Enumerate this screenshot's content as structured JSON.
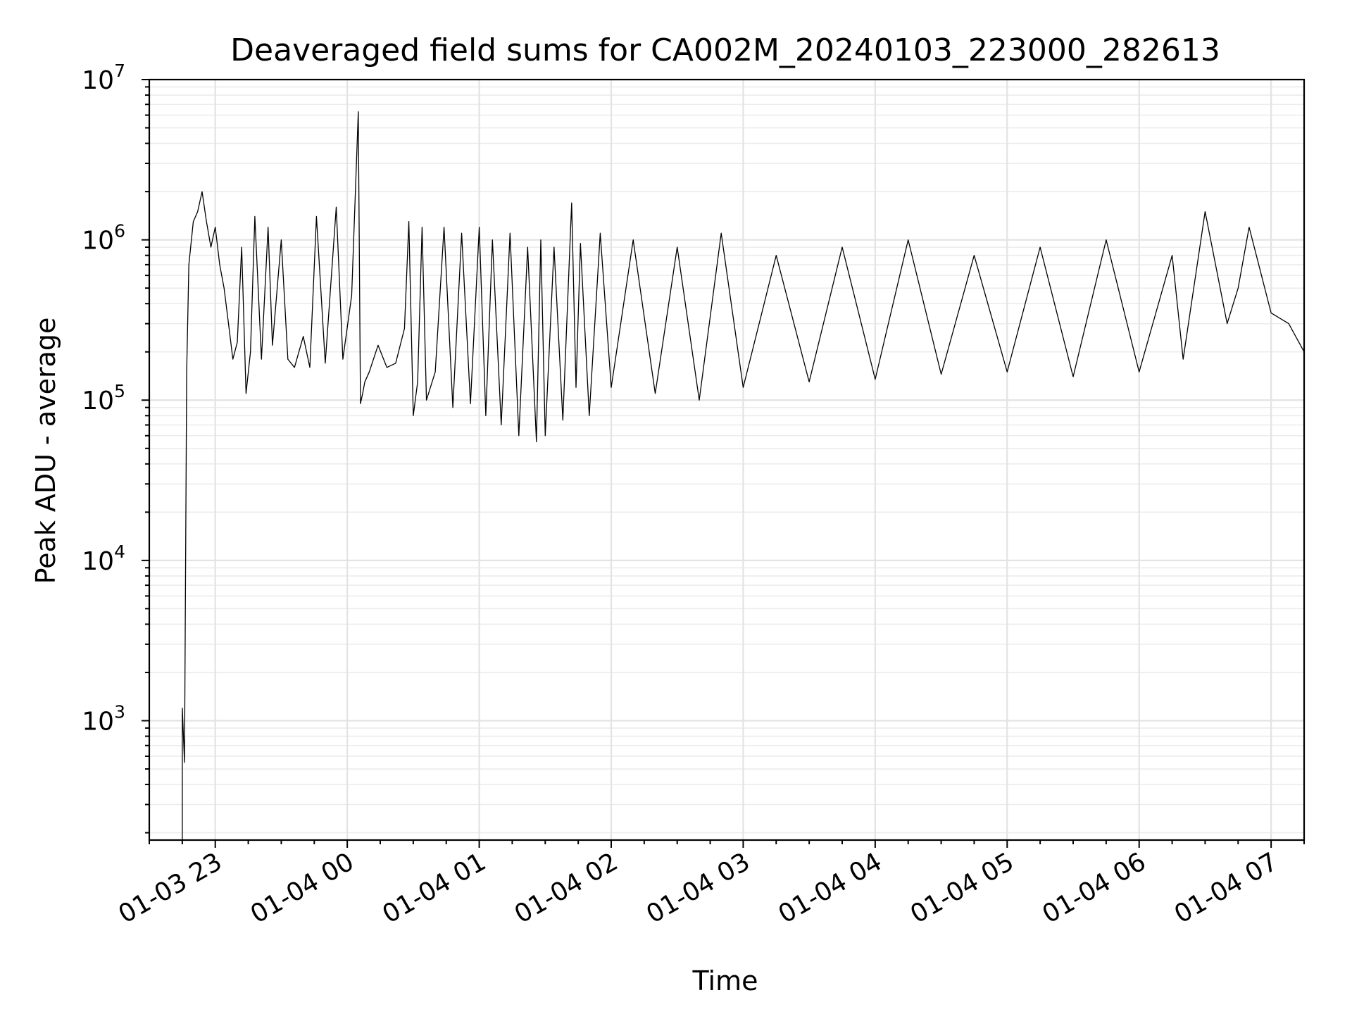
{
  "chart_data": {
    "type": "line",
    "title": "Deaveraged field sums for CA002M_20240103_223000_282613",
    "xlabel": "Time",
    "ylabel": "Peak ADU - average",
    "yscale": "log",
    "ylim": [
      180,
      10000000
    ],
    "xlim": [
      "2024-01-03 22:30",
      "2024-01-04 07:15"
    ],
    "grid": true,
    "grid_minor": true,
    "line_color": "#000000",
    "x_ticks": [
      "2024-01-03 23:00",
      "2024-01-04 00:00",
      "2024-01-04 01:00",
      "2024-01-04 02:00",
      "2024-01-04 03:00",
      "2024-01-04 04:00",
      "2024-01-04 05:00",
      "2024-01-04 06:00",
      "2024-01-04 07:00"
    ],
    "x_tick_labels": [
      "01-03 23",
      "01-04 00",
      "01-04 01",
      "01-04 02",
      "01-04 03",
      "01-04 04",
      "01-04 05",
      "01-04 06",
      "01-04 07"
    ],
    "y_ticks": [
      1000,
      10000,
      100000,
      1000000,
      10000000
    ],
    "y_tick_labels": [
      {
        "base": "10",
        "exp": "3"
      },
      {
        "base": "10",
        "exp": "4"
      },
      {
        "base": "10",
        "exp": "5"
      },
      {
        "base": "10",
        "exp": "6"
      },
      {
        "base": "10",
        "exp": "7"
      }
    ],
    "series": [
      {
        "x": [
          "2024-01-03 22:45",
          "2024-01-03 22:45",
          "2024-01-03 22:46",
          "2024-01-03 22:47",
          "2024-01-03 22:48",
          "2024-01-03 22:50",
          "2024-01-03 22:52",
          "2024-01-03 22:54",
          "2024-01-03 22:56",
          "2024-01-03 22:58",
          "2024-01-03 23:00",
          "2024-01-03 23:02",
          "2024-01-03 23:04",
          "2024-01-03 23:06",
          "2024-01-03 23:08",
          "2024-01-03 23:10",
          "2024-01-03 23:12",
          "2024-01-03 23:14",
          "2024-01-03 23:16",
          "2024-01-03 23:18",
          "2024-01-03 23:21",
          "2024-01-03 23:24",
          "2024-01-03 23:26",
          "2024-01-03 23:30",
          "2024-01-03 23:33",
          "2024-01-03 23:36",
          "2024-01-03 23:40",
          "2024-01-03 23:43",
          "2024-01-03 23:46",
          "2024-01-03 23:50",
          "2024-01-03 23:55",
          "2024-01-03 23:58",
          "2024-01-04 00:02",
          "2024-01-04 00:05",
          "2024-01-04 00:06",
          "2024-01-04 00:07",
          "2024-01-04 00:08",
          "2024-01-04 00:10",
          "2024-01-04 00:14",
          "2024-01-04 00:18",
          "2024-01-04 00:22",
          "2024-01-04 00:26",
          "2024-01-04 00:28",
          "2024-01-04 00:30",
          "2024-01-04 00:32",
          "2024-01-04 00:34",
          "2024-01-04 00:36",
          "2024-01-04 00:40",
          "2024-01-04 00:44",
          "2024-01-04 00:48",
          "2024-01-04 00:52",
          "2024-01-04 00:56",
          "2024-01-04 01:00",
          "2024-01-04 01:03",
          "2024-01-04 01:06",
          "2024-01-04 01:10",
          "2024-01-04 01:14",
          "2024-01-04 01:18",
          "2024-01-04 01:22",
          "2024-01-04 01:26",
          "2024-01-04 01:28",
          "2024-01-04 01:30",
          "2024-01-04 01:34",
          "2024-01-04 01:38",
          "2024-01-04 01:42",
          "2024-01-04 01:44",
          "2024-01-04 01:46",
          "2024-01-04 01:50",
          "2024-01-04 01:55",
          "2024-01-04 02:00",
          "2024-01-04 02:10",
          "2024-01-04 02:20",
          "2024-01-04 02:30",
          "2024-01-04 02:40",
          "2024-01-04 02:50",
          "2024-01-04 03:00",
          "2024-01-04 03:15",
          "2024-01-04 03:30",
          "2024-01-04 03:45",
          "2024-01-04 04:00",
          "2024-01-04 04:15",
          "2024-01-04 04:30",
          "2024-01-04 04:45",
          "2024-01-04 05:00",
          "2024-01-04 05:15",
          "2024-01-04 05:30",
          "2024-01-04 05:45",
          "2024-01-04 06:00",
          "2024-01-04 06:15",
          "2024-01-04 06:20",
          "2024-01-04 06:30",
          "2024-01-04 06:40",
          "2024-01-04 06:45",
          "2024-01-04 06:50",
          "2024-01-04 07:00",
          "2024-01-04 07:08",
          "2024-01-04 07:15"
        ],
        "y": [
          180,
          1200,
          550,
          150000,
          700000,
          1300000,
          1500000,
          2000000,
          1300000,
          900000,
          1200000,
          700000,
          500000,
          300000,
          180000,
          230000,
          900000,
          110000,
          200000,
          1400000,
          180000,
          1200000,
          220000,
          1000000,
          180000,
          160000,
          250000,
          160000,
          1400000,
          170000,
          1600000,
          180000,
          450000,
          6300000,
          95000,
          110000,
          130000,
          150000,
          220000,
          160000,
          170000,
          280000,
          1300000,
          80000,
          130000,
          1200000,
          100000,
          150000,
          1200000,
          90000,
          1100000,
          95000,
          1200000,
          80000,
          1000000,
          70000,
          1100000,
          60000,
          900000,
          55000,
          1000000,
          60000,
          900000,
          75000,
          1700000,
          120000,
          950000,
          80000,
          1100000,
          120000,
          1000000,
          110000,
          900000,
          100000,
          1100000,
          120000,
          800000,
          130000,
          900000,
          135000,
          1000000,
          145000,
          800000,
          150000,
          900000,
          140000,
          1000000,
          150000,
          800000,
          180000,
          1500000,
          300000,
          500000,
          1200000,
          350000,
          300000,
          200000
        ]
      }
    ]
  }
}
